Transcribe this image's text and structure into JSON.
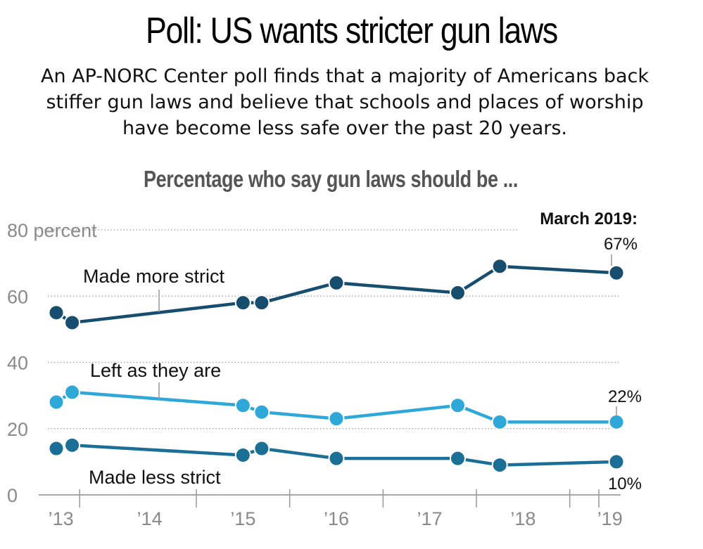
{
  "header": {
    "title": "Poll: US wants stricter gun laws",
    "subtitle_lines": [
      "An AP-NORC Center poll finds that a majority of Americans back",
      "stiffer gun laws and believe that schools and places of worship",
      "have become less safe over the past 20 years."
    ]
  },
  "chart_data": {
    "type": "line",
    "title": "Percentage who say gun laws should be ...",
    "ylabel": "percent",
    "ylim": [
      0,
      80
    ],
    "y_ticks": [
      "0",
      "20",
      "40",
      "60",
      "80 percent"
    ],
    "y_tick_values": [
      0,
      20,
      40,
      60,
      80
    ],
    "x_tick_labels": [
      "’13",
      "’14",
      "’15",
      "’16",
      "’17",
      "’18",
      "’19"
    ],
    "x_label_years": [
      2013.05,
      2014.0,
      2015.0,
      2016.0,
      2017.0,
      2018.0,
      2018.93
    ],
    "x_tick_marks": [
      2013.25,
      2014.5,
      2015.5,
      2016.5,
      2017.5,
      2018.5
    ],
    "xlim": [
      2012.85,
      2019.2
    ],
    "grid": true,
    "series": [
      {
        "name": "Made more strict",
        "color": "#174d6e",
        "x": [
          2013.0,
          2013.17,
          2015.0,
          2015.2,
          2016.0,
          2017.3,
          2017.75,
          2019.0
        ],
        "values": [
          55,
          52,
          58,
          58,
          64,
          61,
          69,
          67
        ]
      },
      {
        "name": "Left as they are",
        "color": "#2ea8d8",
        "x": [
          2013.0,
          2013.17,
          2015.0,
          2015.2,
          2016.0,
          2017.3,
          2017.75,
          2019.0
        ],
        "values": [
          28,
          31,
          27,
          25,
          23,
          27,
          22,
          22
        ]
      },
      {
        "name": "Made less strict",
        "color": "#1b6f96",
        "x": [
          2013.0,
          2013.17,
          2015.0,
          2015.2,
          2016.0,
          2017.3,
          2017.75,
          2019.0
        ],
        "values": [
          14,
          15,
          12,
          14,
          11,
          11,
          9,
          10
        ]
      }
    ],
    "annotations": {
      "date_label": "March 2019:",
      "more_strict_value": "67%",
      "left_as_is_value": "22%",
      "less_strict_value": "10%"
    }
  }
}
